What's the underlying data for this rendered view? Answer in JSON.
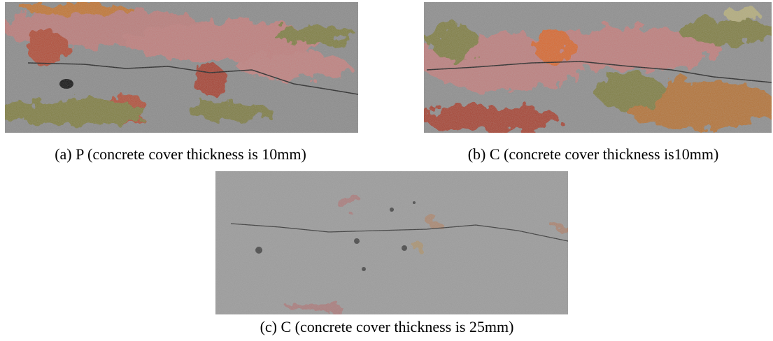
{
  "figures": [
    {
      "caption": "(a) P (concrete cover thickness is 10mm)"
    },
    {
      "caption": "(b) C (concrete cover thickness is10mm)"
    },
    {
      "caption": "(c) C (concrete cover thickness is 25mm)"
    }
  ]
}
